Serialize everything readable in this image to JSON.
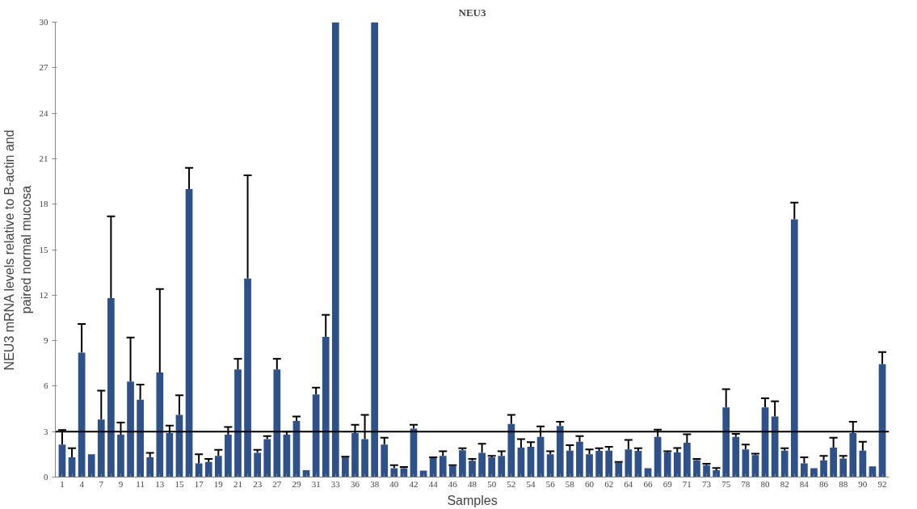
{
  "chart_data": {
    "type": "bar",
    "title": "NEU3",
    "xlabel": "Samples",
    "ylabel": "NEU3 mRNA levels relative to B-actin and paired normal mucosa",
    "categories": [
      "1",
      null,
      "4",
      null,
      "7",
      null,
      "9",
      null,
      "11",
      null,
      "13",
      null,
      "15",
      null,
      "17",
      null,
      "19",
      null,
      "21",
      null,
      "23",
      null,
      "27",
      null,
      "29",
      null,
      "31",
      null,
      "33",
      null,
      "36",
      null,
      "38",
      null,
      "40",
      null,
      "42",
      null,
      "44",
      null,
      "46",
      null,
      "48",
      null,
      "50",
      null,
      "52",
      null,
      "54",
      null,
      "56",
      null,
      "58",
      null,
      "60",
      null,
      "62",
      null,
      "64",
      null,
      "66",
      null,
      "69",
      null,
      "71",
      null,
      "73",
      null,
      "75",
      null,
      "78",
      null,
      "80",
      null,
      "82",
      null,
      "84",
      null,
      "86",
      null,
      "88",
      null,
      "90",
      null,
      "92"
    ],
    "values": [
      2.15,
      1.3,
      8.2,
      1.5,
      3.8,
      11.8,
      2.8,
      6.3,
      5.1,
      1.3,
      6.9,
      2.9,
      4.1,
      19.0,
      0.9,
      1.0,
      1.4,
      2.8,
      7.1,
      13.1,
      1.6,
      2.5,
      7.1,
      2.8,
      3.7,
      0.45,
      5.45,
      9.25,
      30,
      1.3,
      2.9,
      2.5,
      30,
      2.15,
      0.58,
      0.58,
      3.2,
      0.43,
      1.25,
      1.4,
      0.73,
      1.77,
      1.08,
      1.6,
      1.3,
      1.4,
      3.5,
      1.95,
      2.0,
      2.65,
      1.5,
      3.37,
      1.75,
      2.33,
      1.5,
      1.73,
      1.75,
      0.95,
      1.83,
      1.73,
      0.58,
      2.65,
      1.62,
      1.62,
      2.27,
      1.12,
      0.78,
      0.45,
      4.6,
      2.65,
      1.83,
      1.45,
      4.6,
      4.0,
      1.75,
      17.0,
      0.9,
      0.58,
      1.1,
      1.95,
      1.23,
      2.9,
      1.75,
      0.7,
      7.45
    ],
    "errors": [
      [
        2.15,
        3.1
      ],
      [
        1.3,
        1.9
      ],
      [
        8.2,
        10.1
      ],
      null,
      [
        3.8,
        5.7
      ],
      [
        11.8,
        17.2
      ],
      [
        2.8,
        3.6
      ],
      [
        6.3,
        9.2
      ],
      [
        5.1,
        6.1
      ],
      [
        1.3,
        1.6
      ],
      [
        6.9,
        12.4
      ],
      [
        2.9,
        3.4
      ],
      [
        4.1,
        5.4
      ],
      [
        19.0,
        20.4
      ],
      [
        0.9,
        1.5
      ],
      [
        1.0,
        1.2
      ],
      [
        1.4,
        1.8
      ],
      [
        2.8,
        3.3
      ],
      [
        7.1,
        7.8
      ],
      [
        13.1,
        19.9
      ],
      [
        1.6,
        1.8
      ],
      [
        2.5,
        2.7
      ],
      [
        7.1,
        7.8
      ],
      [
        2.8,
        3.0
      ],
      [
        3.7,
        4.0
      ],
      null,
      [
        5.45,
        5.9
      ],
      [
        9.25,
        10.7
      ],
      null,
      [
        1.3,
        1.35
      ],
      [
        2.9,
        3.45
      ],
      [
        2.5,
        4.1
      ],
      null,
      [
        2.15,
        2.6
      ],
      [
        0.58,
        0.78
      ],
      [
        0.58,
        0.67
      ],
      [
        3.2,
        3.45
      ],
      null,
      [
        1.25,
        1.3
      ],
      [
        1.4,
        1.7
      ],
      [
        0.73,
        0.78
      ],
      [
        1.77,
        1.9
      ],
      [
        1.08,
        1.2
      ],
      [
        1.6,
        2.2
      ],
      [
        1.3,
        1.4
      ],
      [
        1.4,
        1.7
      ],
      [
        3.5,
        4.1
      ],
      [
        1.95,
        2.5
      ],
      [
        2.0,
        2.3
      ],
      [
        2.65,
        3.35
      ],
      [
        1.5,
        1.7
      ],
      [
        3.37,
        3.65
      ],
      [
        1.75,
        2.1
      ],
      [
        2.33,
        2.7
      ],
      [
        1.5,
        1.83
      ],
      [
        1.73,
        1.9
      ],
      [
        1.75,
        2.0
      ],
      [
        0.95,
        1.0
      ],
      [
        1.83,
        2.45
      ],
      [
        1.73,
        1.9
      ],
      null,
      [
        2.65,
        3.13
      ],
      [
        1.62,
        1.7
      ],
      [
        1.62,
        1.92
      ],
      [
        2.27,
        2.83
      ],
      [
        1.12,
        1.2
      ],
      [
        0.78,
        0.88
      ],
      [
        0.45,
        0.6
      ],
      [
        4.6,
        5.8
      ],
      [
        2.65,
        2.85
      ],
      [
        1.83,
        2.15
      ],
      [
        1.45,
        1.55
      ],
      [
        4.6,
        5.2
      ],
      [
        4.0,
        5.0
      ],
      [
        1.75,
        1.9
      ],
      [
        17.0,
        18.1
      ],
      [
        0.9,
        1.3
      ],
      null,
      [
        1.1,
        1.4
      ],
      [
        1.95,
        2.6
      ],
      [
        1.23,
        1.4
      ],
      [
        2.9,
        3.65
      ],
      [
        1.75,
        2.33
      ],
      null,
      [
        7.45,
        8.25
      ]
    ],
    "color": "#2f5189",
    "ylim": [
      0,
      30
    ],
    "yticks": [
      0,
      3,
      6,
      9,
      12,
      15,
      18,
      21,
      24,
      27,
      30
    ],
    "grid": false,
    "ref_lines": [
      {
        "axis": "y",
        "value": 3,
        "color": "#000000"
      }
    ]
  }
}
